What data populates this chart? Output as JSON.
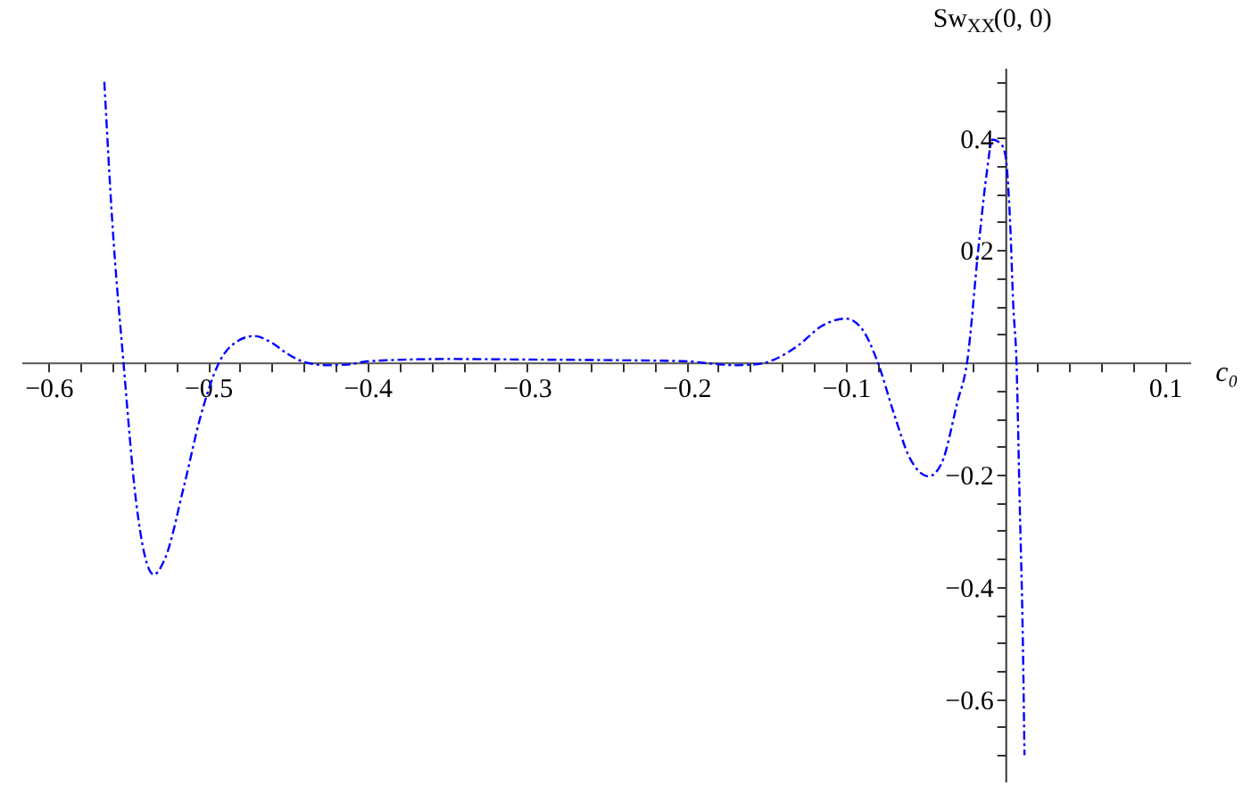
{
  "chart_data": {
    "type": "line",
    "xlabel": "c₀",
    "ylabel": "Sw$_{XX}$(0, 0)",
    "line_style": "dashed",
    "marker": "none",
    "grid": false,
    "xlim": [
      -0.617,
      0.116
    ],
    "ylim": [
      -0.747,
      0.525
    ],
    "xticks": [
      -0.6,
      {
        "value": -0.58,
        "label": null
      },
      {
        "value": -0.56,
        "label": null
      },
      {
        "value": -0.54,
        "label": null
      },
      {
        "value": -0.52,
        "label": null
      },
      -0.5,
      {
        "value": -0.48,
        "label": null
      },
      {
        "value": -0.46,
        "label": null
      },
      {
        "value": -0.44,
        "label": null
      },
      {
        "value": -0.42,
        "label": null
      },
      -0.4,
      {
        "value": -0.38,
        "label": null
      },
      {
        "value": -0.36,
        "label": null
      },
      {
        "value": -0.34,
        "label": null
      },
      {
        "value": -0.32,
        "label": null
      },
      -0.3,
      {
        "value": -0.28,
        "label": null
      },
      {
        "value": -0.26,
        "label": null
      },
      {
        "value": -0.24,
        "label": null
      },
      {
        "value": -0.22,
        "label": null
      },
      -0.2,
      {
        "value": -0.18,
        "label": null
      },
      {
        "value": -0.16,
        "label": null
      },
      {
        "value": -0.14,
        "label": null
      },
      {
        "value": -0.12,
        "label": null
      },
      -0.1,
      {
        "value": -0.08,
        "label": null
      },
      {
        "value": -0.06,
        "label": null
      },
      {
        "value": -0.04,
        "label": null
      },
      {
        "value": -0.02,
        "label": null
      },
      {
        "value": 0.02,
        "label": null
      },
      {
        "value": 0.04,
        "label": null
      },
      {
        "value": 0.06,
        "label": null
      },
      {
        "value": 0.08,
        "label": null
      },
      0.1
    ],
    "yticks": [
      {
        "value": 0.5,
        "label": null
      },
      {
        "value": 0.45,
        "label": null
      },
      0.4,
      {
        "value": 0.35,
        "label": null
      },
      {
        "value": 0.3,
        "label": null
      },
      {
        "value": 0.25,
        "label": null
      },
      0.2,
      {
        "value": 0.15,
        "label": null
      },
      {
        "value": 0.1,
        "label": null
      },
      {
        "value": 0.05,
        "label": null
      },
      {
        "value": -0.05,
        "label": null
      },
      {
        "value": -0.1,
        "label": null
      },
      {
        "value": -0.15,
        "label": null
      },
      -0.2,
      {
        "value": -0.25,
        "label": null
      },
      {
        "value": -0.3,
        "label": null
      },
      {
        "value": -0.35,
        "label": null
      },
      -0.4,
      {
        "value": -0.45,
        "label": null
      },
      {
        "value": -0.5,
        "label": null
      },
      {
        "value": -0.55,
        "label": null
      },
      -0.6,
      {
        "value": -0.65,
        "label": null
      },
      {
        "value": -0.7,
        "label": null
      }
    ],
    "series": [
      {
        "color": "#0000ff",
        "x": [
          -0.565,
          -0.56,
          -0.553,
          -0.545,
          -0.54,
          -0.534,
          -0.527,
          -0.515,
          -0.505,
          -0.493,
          -0.483,
          -0.471,
          -0.46,
          -0.45,
          -0.439,
          -0.425,
          -0.41,
          -0.4,
          -0.35,
          -0.3,
          -0.25,
          -0.2,
          -0.185,
          -0.17,
          -0.155,
          -0.145,
          -0.13,
          -0.115,
          -0.1,
          -0.09,
          -0.08,
          -0.07,
          -0.06,
          -0.048,
          -0.04,
          -0.03,
          -0.024,
          -0.017,
          -0.012,
          -0.008,
          -0.003,
          0,
          0.003,
          0.005,
          0.007,
          0.009,
          0.011,
          0.012
        ],
        "values": [
          0.5,
          0.25,
          0,
          -0.25,
          -0.34,
          -0.378,
          -0.35,
          -0.22,
          -0.1,
          0,
          0.035,
          0.047,
          0.035,
          0.015,
          0,
          -0.005,
          -0.003,
          0.002,
          0.006,
          0.005,
          0.004,
          0.002,
          -0.002,
          -0.005,
          -0.003,
          0.005,
          0.03,
          0.065,
          0.078,
          0.06,
          0,
          -0.09,
          -0.17,
          -0.203,
          -0.18,
          -0.07,
          0,
          0.2,
          0.33,
          0.397,
          0.39,
          0.37,
          0.25,
          0.1,
          0,
          -0.25,
          -0.5,
          -0.7
        ]
      }
    ]
  }
}
